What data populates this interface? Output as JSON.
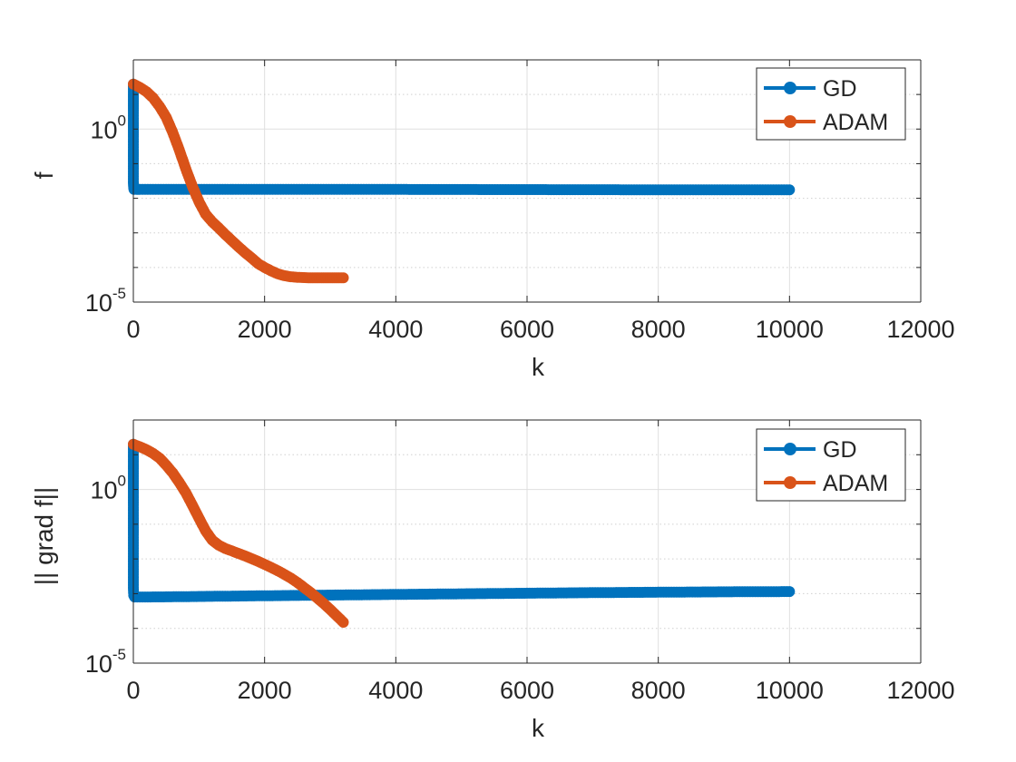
{
  "chart_data": [
    {
      "type": "line",
      "title": "",
      "xlabel": "k",
      "ylabel": "f",
      "xlim": [
        0,
        12000
      ],
      "xticks": [
        0,
        2000,
        4000,
        6000,
        8000,
        10000,
        12000
      ],
      "xtick_labels": [
        "0",
        "2000",
        "4000",
        "6000",
        "8000",
        "10000",
        "12000"
      ],
      "yscale": "log",
      "ylim": [
        1e-05,
        100
      ],
      "yticks": [
        {
          "value": 1e-05,
          "base": "10",
          "exp": "-5"
        },
        {
          "value": 1,
          "base": "10",
          "exp": "0"
        }
      ],
      "grid": true,
      "legend": "top-right",
      "series": [
        {
          "name": "GD",
          "color": "#0072BD",
          "x": [
            0,
            0,
            0,
            0,
            0,
            0,
            0,
            0,
            0,
            5,
            10,
            50,
            100,
            500,
            1000,
            2000,
            4000,
            6000,
            8000,
            10000
          ],
          "y": [
            20,
            10,
            4,
            1.5,
            0.6,
            0.25,
            0.12,
            0.06,
            0.03,
            0.02,
            0.018,
            0.018,
            0.018,
            0.018,
            0.018,
            0.018,
            0.018,
            0.0178,
            0.0176,
            0.0175
          ]
        },
        {
          "name": "ADAM",
          "color": "#D95319",
          "x": [
            0,
            100,
            200,
            300,
            400,
            500,
            600,
            700,
            800,
            900,
            1000,
            1100,
            1200,
            1300,
            1400,
            1500,
            1600,
            1700,
            1800,
            1900,
            2000,
            2100,
            2200,
            2300,
            2400,
            2500,
            2600,
            2700,
            2800,
            2900,
            3000,
            3100,
            3200
          ],
          "y": [
            20,
            16,
            12,
            8,
            4.5,
            2.2,
            0.8,
            0.25,
            0.07,
            0.022,
            0.008,
            0.0035,
            0.0021,
            0.0014,
            0.0009,
            0.0006,
            0.0004,
            0.00027,
            0.00019,
            0.00013,
            0.0001,
            8e-05,
            6.6e-05,
            5.8e-05,
            5.4e-05,
            5.2e-05,
            5.1e-05,
            5e-05,
            5e-05,
            5e-05,
            5e-05,
            5e-05,
            5e-05
          ]
        }
      ]
    },
    {
      "type": "line",
      "title": "",
      "xlabel": "k",
      "ylabel": "|| grad f||",
      "xlim": [
        0,
        12000
      ],
      "xticks": [
        0,
        2000,
        4000,
        6000,
        8000,
        10000,
        12000
      ],
      "xtick_labels": [
        "0",
        "2000",
        "4000",
        "6000",
        "8000",
        "10000",
        "12000"
      ],
      "yscale": "log",
      "ylim": [
        1e-05,
        100
      ],
      "yticks": [
        {
          "value": 1e-05,
          "base": "10",
          "exp": "-5"
        },
        {
          "value": 1,
          "base": "10",
          "exp": "0"
        }
      ],
      "grid": true,
      "legend": "top-right",
      "series": [
        {
          "name": "GD",
          "color": "#0072BD",
          "x": [
            0,
            0,
            0,
            0,
            0,
            0,
            0,
            0,
            0,
            0,
            5,
            20,
            60,
            100,
            500,
            1000,
            2000,
            3000,
            4000,
            5000,
            6000,
            7000,
            8000,
            9000,
            10000
          ],
          "y": [
            20,
            10,
            4,
            1.5,
            0.5,
            0.15,
            0.05,
            0.01,
            0.003,
            0.0015,
            0.0009,
            0.0008,
            0.0008,
            0.0008,
            0.00081,
            0.00083,
            0.00087,
            0.00091,
            0.00095,
            0.00099,
            0.00103,
            0.00107,
            0.0011,
            0.00113,
            0.00115
          ]
        },
        {
          "name": "ADAM",
          "color": "#D95319",
          "x": [
            0,
            100,
            200,
            300,
            400,
            500,
            600,
            700,
            800,
            900,
            1000,
            1100,
            1200,
            1300,
            1400,
            1500,
            1600,
            1700,
            1800,
            1900,
            2000,
            2100,
            2200,
            2300,
            2400,
            2500,
            2600,
            2700,
            2800,
            2900,
            3000,
            3100,
            3200
          ],
          "y": [
            20,
            17,
            14,
            11,
            8,
            5,
            3,
            1.6,
            0.8,
            0.35,
            0.15,
            0.065,
            0.035,
            0.025,
            0.02,
            0.017,
            0.0145,
            0.0122,
            0.0102,
            0.0085,
            0.007,
            0.0057,
            0.0046,
            0.0036,
            0.0028,
            0.0021,
            0.0015,
            0.00108,
            0.00076,
            0.00052,
            0.00035,
            0.00023,
            0.00015
          ]
        }
      ]
    }
  ]
}
